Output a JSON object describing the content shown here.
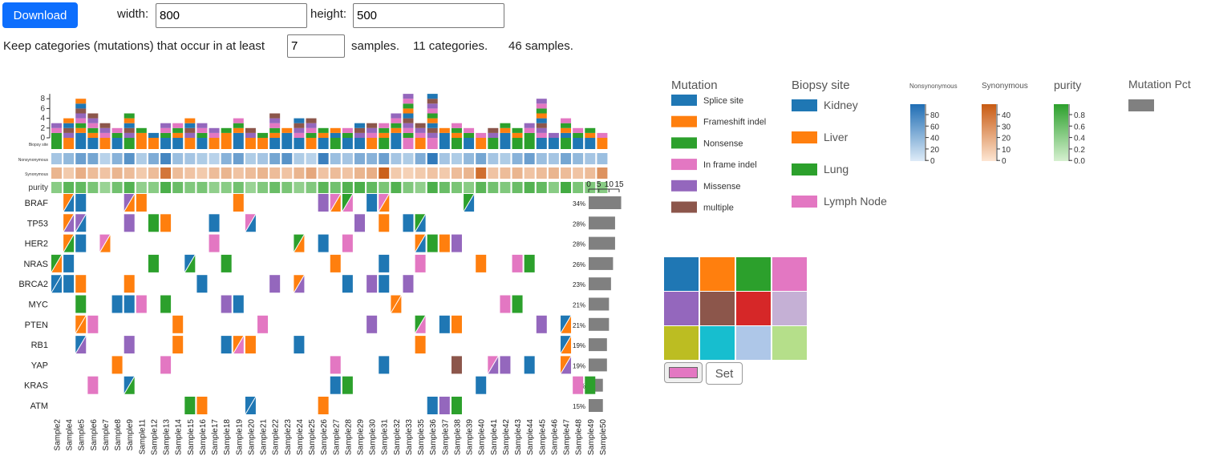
{
  "controls": {
    "download_label": "Download",
    "width_label": "width:",
    "width_value": "800",
    "height_label": "height:",
    "height_value": "500",
    "keep_text": "Keep categories (mutations) that occur in at least",
    "min_samples_value": "7",
    "samples_text": "samples.",
    "categories_count": "11 categories.",
    "samples_count": "46 samples.",
    "set_label": "Set",
    "selected_color": "#e377c2"
  },
  "chart_data": {
    "type": "heatmap",
    "samples": [
      "Sample2",
      "Sample4",
      "Sample5",
      "Sample6",
      "Sample7",
      "Sample8",
      "Sample9",
      "Sample11",
      "Sample12",
      "Sample13",
      "Sample14",
      "Sample15",
      "Sample16",
      "Sample17",
      "Sample18",
      "Sample19",
      "Sample20",
      "Sample21",
      "Sample22",
      "Sample23",
      "Sample24",
      "Sample25",
      "Sample26",
      "Sample27",
      "Sample28",
      "Sample29",
      "Sample30",
      "Sample31",
      "Sample32",
      "Sample33",
      "Sample35",
      "Sample36",
      "Sample37",
      "Sample38",
      "Sample39",
      "Sample40",
      "Sample41",
      "Sample42",
      "Sample43",
      "Sample44",
      "Sample45",
      "Sample46",
      "Sample47",
      "Sample48",
      "Sample49",
      "Sample50"
    ],
    "genes": [
      "BRAF",
      "TP53",
      "HER2",
      "NRAS",
      "BRCA2",
      "MYC",
      "PTEN",
      "RB1",
      "YAP",
      "KRAS",
      "ATM"
    ],
    "gene_pct": [
      "34%",
      "28%",
      "28%",
      "26%",
      "23%",
      "21%",
      "21%",
      "19%",
      "19%",
      "15%",
      "15%"
    ],
    "gene_counts": [
      16,
      13,
      13,
      12,
      11,
      10,
      10,
      9,
      9,
      7,
      7
    ],
    "bar_axis_ticks": [
      "0",
      "5",
      "10",
      "15"
    ],
    "bar_axis_max": 15,
    "top_axis_ticks": [
      "0",
      "2",
      "4",
      "6",
      "8"
    ],
    "top_axis_max": 9,
    "track_labels": [
      "Biopsy site",
      "Nonsynonymous",
      "Synonymous",
      "purity"
    ],
    "mutation_types": [
      "Splice site",
      "Frameshift indel",
      "Nonsense",
      "In frame indel",
      "Missense",
      "multiple"
    ],
    "mutation_colors": [
      "#1f77b4",
      "#ff7f0e",
      "#2ca02c",
      "#e377c2",
      "#9467bd",
      "#8c564b"
    ],
    "biopsy_sites": [
      "Kidney",
      "Liver",
      "Lung",
      "Lymph Node"
    ],
    "biopsy_colors": [
      "#1f77b4",
      "#ff7f0e",
      "#2ca02c",
      "#e377c2"
    ],
    "biopsy": [
      2,
      1,
      0,
      0,
      1,
      0,
      2,
      1,
      1,
      0,
      0,
      1,
      0,
      1,
      1,
      0,
      1,
      1,
      0,
      0,
      0,
      1,
      0,
      2,
      0,
      0,
      1,
      2,
      0,
      3,
      1,
      3,
      0,
      2,
      0,
      1,
      2,
      0,
      2,
      2,
      0,
      0,
      2,
      0,
      0,
      1
    ],
    "nonsyn": [
      0.3,
      0.4,
      0.6,
      0.55,
      0.2,
      0.45,
      0.7,
      0.25,
      0.5,
      0.8,
      0.35,
      0.3,
      0.25,
      0.2,
      0.45,
      0.6,
      0.25,
      0.3,
      0.55,
      0.7,
      0.25,
      0.2,
      0.85,
      0.35,
      0.3,
      0.5,
      0.45,
      0.6,
      0.3,
      0.25,
      0.5,
      0.9,
      0.3,
      0.25,
      0.4,
      0.55,
      0.3,
      0.25,
      0.45,
      0.6,
      0.35,
      0.3,
      0.55,
      0.4,
      0.3,
      0.35
    ],
    "syn": [
      0.35,
      0.2,
      0.4,
      0.3,
      0.25,
      0.35,
      0.3,
      0.2,
      0.3,
      0.8,
      0.3,
      0.25,
      0.2,
      0.3,
      0.35,
      0.25,
      0.3,
      0.35,
      0.3,
      0.25,
      0.35,
      0.45,
      0.25,
      0.3,
      0.25,
      0.35,
      0.4,
      0.95,
      0.2,
      0.15,
      0.2,
      0.25,
      0.2,
      0.3,
      0.35,
      0.85,
      0.25,
      0.3,
      0.35,
      0.25,
      0.3,
      0.35,
      0.3,
      0.25,
      0.3,
      0.6
    ],
    "purity": [
      0.4,
      0.7,
      0.65,
      0.5,
      0.3,
      0.55,
      0.75,
      0.35,
      0.4,
      0.8,
      0.6,
      0.45,
      0.5,
      0.35,
      0.4,
      0.55,
      0.3,
      0.45,
      0.6,
      0.5,
      0.35,
      0.45,
      0.7,
      0.55,
      0.75,
      0.8,
      0.65,
      0.5,
      0.75,
      0.45,
      0.35,
      0.8,
      0.6,
      0.5,
      0.4,
      0.7,
      0.55,
      0.45,
      0.6,
      0.75,
      0.65,
      0.4,
      0.85,
      0.5,
      0.45,
      0.4
    ],
    "stack_totals": [
      3,
      4,
      8,
      5,
      3,
      2,
      5,
      2,
      1,
      3,
      3,
      4,
      3,
      2,
      2,
      4,
      2,
      1,
      5,
      2,
      4,
      4,
      2,
      2,
      2,
      3,
      3,
      3,
      5,
      9,
      3,
      9,
      2,
      3,
      2,
      1,
      2,
      3,
      2,
      3,
      8,
      1,
      4,
      2,
      2,
      1
    ],
    "stack_colors_idx": [
      2,
      4,
      0,
      1,
      3,
      2,
      4,
      1,
      0,
      2,
      1,
      4,
      2,
      3,
      1,
      0,
      4,
      2,
      1,
      0,
      3,
      2,
      1,
      0,
      2,
      4,
      3,
      1,
      0,
      2,
      3,
      4,
      0,
      1,
      2,
      3,
      4,
      0,
      1,
      2,
      3,
      4,
      0,
      2,
      1,
      3
    ],
    "cells": [
      [
        1,
        1,
        "1/0"
      ],
      [
        1,
        2,
        "0"
      ],
      [
        1,
        6,
        "4/1"
      ],
      [
        1,
        7,
        "1"
      ],
      [
        1,
        15,
        "1"
      ],
      [
        1,
        22,
        "4"
      ],
      [
        1,
        23,
        "3/1"
      ],
      [
        1,
        24,
        "2/3"
      ],
      [
        1,
        26,
        "0"
      ],
      [
        1,
        27,
        "3/1"
      ],
      [
        1,
        34,
        "2/0"
      ],
      [
        2,
        1,
        "1/4"
      ],
      [
        2,
        2,
        "4/0"
      ],
      [
        2,
        6,
        "4"
      ],
      [
        2,
        8,
        "2"
      ],
      [
        2,
        9,
        "1"
      ],
      [
        2,
        13,
        "0"
      ],
      [
        2,
        16,
        "3/0"
      ],
      [
        2,
        25,
        "4"
      ],
      [
        2,
        27,
        "1"
      ],
      [
        2,
        29,
        "0"
      ],
      [
        2,
        30,
        "2/0"
      ],
      [
        3,
        1,
        "1/2"
      ],
      [
        3,
        2,
        "0"
      ],
      [
        3,
        4,
        "3/1"
      ],
      [
        3,
        13,
        "3"
      ],
      [
        3,
        20,
        "2/1"
      ],
      [
        3,
        22,
        "0"
      ],
      [
        3,
        24,
        "3"
      ],
      [
        3,
        30,
        "1/0"
      ],
      [
        3,
        31,
        "2"
      ],
      [
        3,
        32,
        "1"
      ],
      [
        3,
        33,
        "4"
      ],
      [
        4,
        0,
        "2/1"
      ],
      [
        4,
        1,
        "0"
      ],
      [
        4,
        8,
        "2"
      ],
      [
        4,
        11,
        "0/2"
      ],
      [
        4,
        14,
        "2"
      ],
      [
        4,
        23,
        "1"
      ],
      [
        4,
        27,
        "0"
      ],
      [
        4,
        30,
        "3"
      ],
      [
        4,
        35,
        "1"
      ],
      [
        4,
        38,
        "3"
      ],
      [
        4,
        39,
        "2"
      ],
      [
        5,
        0,
        "0/0"
      ],
      [
        5,
        1,
        "0"
      ],
      [
        5,
        2,
        "1"
      ],
      [
        5,
        6,
        "1"
      ],
      [
        5,
        12,
        "0"
      ],
      [
        5,
        18,
        "4"
      ],
      [
        5,
        20,
        "1/4"
      ],
      [
        5,
        24,
        "0"
      ],
      [
        5,
        26,
        "4"
      ],
      [
        5,
        27,
        "0"
      ],
      [
        5,
        29,
        "4"
      ],
      [
        6,
        2,
        "2"
      ],
      [
        6,
        5,
        "0"
      ],
      [
        6,
        6,
        "0"
      ],
      [
        6,
        7,
        "3"
      ],
      [
        6,
        9,
        "2"
      ],
      [
        6,
        14,
        "4"
      ],
      [
        6,
        15,
        "0"
      ],
      [
        6,
        28,
        "1/1"
      ],
      [
        6,
        37,
        "3"
      ],
      [
        6,
        38,
        "2"
      ],
      [
        7,
        2,
        "1/1"
      ],
      [
        7,
        3,
        "3"
      ],
      [
        7,
        10,
        "1"
      ],
      [
        7,
        17,
        "3"
      ],
      [
        7,
        26,
        "4"
      ],
      [
        7,
        30,
        "2/3"
      ],
      [
        7,
        32,
        "0"
      ],
      [
        7,
        33,
        "1"
      ],
      [
        7,
        40,
        "4"
      ],
      [
        7,
        42,
        "0/1"
      ],
      [
        8,
        2,
        "0/4"
      ],
      [
        8,
        6,
        "4"
      ],
      [
        8,
        10,
        "1"
      ],
      [
        8,
        14,
        "0"
      ],
      [
        8,
        15,
        "1/3"
      ],
      [
        8,
        16,
        "1"
      ],
      [
        8,
        20,
        "0"
      ],
      [
        8,
        30,
        "1"
      ],
      [
        8,
        42,
        "0/1"
      ],
      [
        9,
        5,
        "1"
      ],
      [
        9,
        9,
        "3"
      ],
      [
        9,
        23,
        "3"
      ],
      [
        9,
        27,
        "0"
      ],
      [
        9,
        33,
        "5"
      ],
      [
        9,
        36,
        "3/4"
      ],
      [
        9,
        37,
        "4"
      ],
      [
        9,
        39,
        "0"
      ],
      [
        9,
        42,
        "1/4"
      ],
      [
        10,
        3,
        "3"
      ],
      [
        10,
        6,
        "0/2"
      ],
      [
        10,
        23,
        "0"
      ],
      [
        10,
        24,
        "2"
      ],
      [
        10,
        35,
        "0"
      ],
      [
        10,
        43,
        "3"
      ],
      [
        10,
        44,
        "2"
      ],
      [
        11,
        11,
        "2"
      ],
      [
        11,
        12,
        "1"
      ],
      [
        11,
        16,
        "0/0"
      ],
      [
        11,
        22,
        "1"
      ],
      [
        11,
        31,
        "0"
      ],
      [
        11,
        32,
        "4"
      ],
      [
        11,
        33,
        "2"
      ]
    ]
  },
  "legends": {
    "mutation_title": "Mutation",
    "biopsy_title": "Biopsy site",
    "nonsyn_title": "Nonsynonymous",
    "nonsyn_ticks": [
      "80",
      "60",
      "40",
      "20",
      "0"
    ],
    "syn_title": "Synonymous",
    "syn_ticks": [
      "40",
      "30",
      "20",
      "10",
      "0"
    ],
    "purity_title": "purity",
    "purity_ticks": [
      "0.8",
      "0.6",
      "0.4",
      "0.2",
      "0.0"
    ],
    "pct_title": "Mutation Pct",
    "pct_color": "#808080"
  },
  "palette": [
    "#1f77b4",
    "#ff7f0e",
    "#2ca02c",
    "#e377c2",
    "#9467bd",
    "#8c564b",
    "#d62728",
    "#c5b0d5",
    "#bcbd22",
    "#17becf",
    "#aec7e8",
    "#b5df8a"
  ]
}
